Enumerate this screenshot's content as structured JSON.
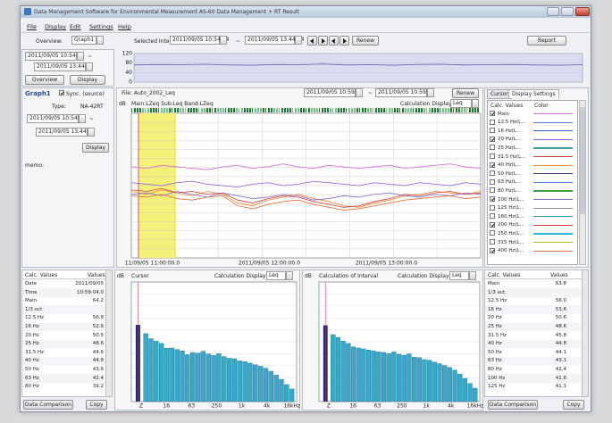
{
  "window": {
    "title": "Data Management Software for Environmental Measurement AS-60 Data Management + RT Result"
  },
  "menu": [
    "File",
    "Display",
    "Edit",
    "Settings",
    "Help"
  ],
  "toolbar": {
    "overview_label": "Overview:",
    "overview_value": "Graph1",
    "interval_label": "Selected Interval:",
    "start": "2011/09/05 10:54:04",
    "sep": "~",
    "end": "2011/09/05 13:44:04",
    "renew": "Renew",
    "report": "Report"
  },
  "overview": {
    "start": "2011/09/05 10:54:04",
    "sep": "~",
    "end": "2011/09/05 13:44:04",
    "buttons": [
      "Overview",
      "Display"
    ],
    "chart": {
      "type": "line",
      "ylim": [
        0,
        120
      ],
      "yticks": [
        0,
        40,
        80,
        120
      ],
      "color": "#6a5aa8",
      "values": [
        72,
        74,
        73,
        75,
        72,
        71,
        74,
        73,
        76,
        72,
        73,
        71,
        74,
        75,
        72,
        73,
        74,
        72,
        71,
        73
      ]
    }
  },
  "graph_panel": {
    "name": "Graph1",
    "sync_checked": true,
    "sync": "Sync. (source)",
    "type_label": "Type:",
    "type_value": "NA-42RT",
    "start": "2011/09/05 10:54:04",
    "sep": "~",
    "end": "2011/09/05 13:44:04",
    "display": "Display",
    "memo": "memo:"
  },
  "main_graph": {
    "file": "File: Auto_2002_Leq",
    "start": "2011/09/05 10:59:41",
    "sep": "~",
    "end": "2011/09/05 10:59:41",
    "renew": "Renew",
    "unit": "dB",
    "legend": "Main:LZeq Sub:Leq Band:LZeq",
    "calc_label": "Calculation Display",
    "calc_value": "Leq",
    "chart": {
      "type": "line",
      "ylim": [
        0,
        100
      ],
      "x_labels": [
        "11/09/05 11:00:00.0",
        "2011/09/05 12:00:00.0",
        "2011/09/05 13:00:00.0"
      ],
      "series": [
        {
          "color": "#d66fd6",
          "values": [
            63,
            62,
            64,
            63,
            62,
            61,
            63,
            64,
            62,
            63,
            65,
            63,
            62,
            64,
            63,
            62,
            63,
            64,
            62,
            63,
            64,
            65,
            63,
            62
          ]
        },
        {
          "color": "#8a5ad6",
          "values": [
            52,
            51,
            50,
            52,
            53,
            51,
            50,
            49,
            51,
            52,
            50,
            51,
            53,
            52,
            51,
            50,
            52,
            51,
            50,
            52,
            51,
            50,
            52,
            51
          ]
        },
        {
          "color": "#f08a30",
          "values": [
            46,
            44,
            47,
            45,
            43,
            46,
            44,
            38,
            36,
            40,
            42,
            44,
            41,
            39,
            36,
            35,
            38,
            40,
            43,
            44,
            46,
            45,
            44,
            46
          ]
        },
        {
          "color": "#7a6ad0",
          "values": [
            44,
            45,
            43,
            46,
            44,
            42,
            45,
            43,
            41,
            42,
            44,
            43,
            40,
            41,
            43,
            42,
            44,
            45,
            43,
            42,
            44,
            43,
            45,
            44
          ]
        },
        {
          "color": "#d04040",
          "values": [
            47,
            46,
            48,
            45,
            46,
            44,
            45,
            40,
            38,
            41,
            43,
            42,
            39,
            37,
            35,
            36,
            39,
            41,
            44,
            43,
            45,
            46,
            44,
            45
          ]
        },
        {
          "color": "#e07040",
          "values": [
            43,
            42,
            44,
            41,
            40,
            42,
            43,
            36,
            34,
            37,
            39,
            40,
            37,
            35,
            33,
            34,
            36,
            38,
            40,
            41,
            42,
            43,
            41,
            42
          ]
        }
      ]
    }
  },
  "display_settings": {
    "tabs": [
      "Cursor",
      "Display Settings"
    ],
    "headers": [
      "Calc. Values",
      "Color"
    ],
    "rows": [
      {
        "label": "Main",
        "checked": true,
        "color": "#d66fd6"
      },
      {
        "label": "12.5 Hz(L...",
        "checked": false,
        "color": "#4a7ad8"
      },
      {
        "label": "16 Hz(L...",
        "checked": false,
        "color": "#3a5ac0"
      },
      {
        "label": "20 Hz(L...",
        "checked": true,
        "color": "#8a5ad6"
      },
      {
        "label": "25 Hz(L...",
        "checked": false,
        "color": "#3aa0a0"
      },
      {
        "label": "31.5 Hz(L...",
        "checked": false,
        "color": "#d04040"
      },
      {
        "label": "40 Hz(L...",
        "checked": true,
        "color": "#f08a30"
      },
      {
        "label": "50 Hz(L...",
        "checked": false,
        "color": "#2a3a90"
      },
      {
        "label": "63 Hz(L...",
        "checked": false,
        "color": "#4a8ae0"
      },
      {
        "label": "80 Hz(L...",
        "checked": false,
        "color": "#40a040"
      },
      {
        "label": "100 Hz(L...",
        "checked": true,
        "color": "#7a6ad0"
      },
      {
        "label": "125 Hz(L...",
        "checked": false,
        "color": "#909090"
      },
      {
        "label": "160 Hz(L...",
        "checked": false,
        "color": "#30a0a0"
      },
      {
        "label": "200 Hz(L...",
        "checked": true,
        "color": "#d04040"
      },
      {
        "label": "250 Hz(L...",
        "checked": false,
        "color": "#30b8d8"
      },
      {
        "label": "315 Hz(L...",
        "checked": false,
        "color": "#a0c030"
      },
      {
        "label": "400 Hz(L...",
        "checked": true,
        "color": "#e07040"
      }
    ]
  },
  "cursor_table": {
    "headers": [
      "Calc. Values",
      "Values"
    ],
    "rows": [
      [
        "Date",
        "2011/09/05"
      ],
      [
        "Time",
        "10:59:04.0"
      ],
      [
        "Main",
        "64.2"
      ],
      [
        "1/3 oct."
      ],
      [
        "12.5 Hz",
        "56.8"
      ],
      [
        "16 Hz",
        "52.6"
      ],
      [
        "20 Hz",
        "50.5"
      ],
      [
        "25 Hz",
        "48.6"
      ],
      [
        "31.5 Hz",
        "44.6"
      ],
      [
        "40 Hz",
        "44.8"
      ],
      [
        "50 Hz",
        "43.6"
      ],
      [
        "63 Hz",
        "42.4"
      ],
      [
        "80 Hz",
        "39.2"
      ]
    ],
    "buttons": [
      "Data Comparison",
      "Copy"
    ]
  },
  "cursor_chart": {
    "type": "bar",
    "unit": "dB",
    "title": "Cursor",
    "calc_label": "Calculation Display",
    "calc_value": "Leq",
    "ylim": [
      0,
      100
    ],
    "main_color": "#1a2a80",
    "band_color": "#3aa8c8",
    "x_labels": [
      "Z",
      "16",
      "63",
      "250",
      "1k",
      "4k",
      "16kHz"
    ],
    "values": [
      64.2,
      56.8,
      52.6,
      50.5,
      48.6,
      44.6,
      44.8,
      43.6,
      42.4,
      39.2,
      41.0,
      40.5,
      42.0,
      39.8,
      38.5,
      40.1,
      37.6,
      36.2,
      35.8,
      34.0,
      33.5,
      32.2,
      30.8,
      29.5,
      27.9,
      25.4,
      22.1,
      18.6,
      14.2,
      10.5
    ]
  },
  "interval_chart": {
    "type": "bar",
    "unit": "dB",
    "title": "Calculation of Interval",
    "calc_label": "Calculation Display",
    "calc_value": "Leq",
    "ylim": [
      0,
      100
    ],
    "main_color": "#1a2a80",
    "band_color": "#3aa8c8",
    "x_labels": [
      "Z",
      "16",
      "63",
      "250",
      "1k",
      "4k",
      "16kHz"
    ],
    "values": [
      63.8,
      56.0,
      53.6,
      50.6,
      48.6,
      45.8,
      44.8,
      44.1,
      43.1,
      42.4,
      41.6,
      41.1,
      40.2,
      41.5,
      39.6,
      38.8,
      39.9,
      37.2,
      36.8,
      35.1,
      34.6,
      33.0,
      31.7,
      30.2,
      28.5,
      26.3,
      23.0,
      19.4,
      15.1,
      11.2
    ]
  },
  "interval_table": {
    "headers": [
      "Calc. Values",
      "Values"
    ],
    "rows": [
      [
        "Main",
        "63.8"
      ],
      [
        "1/3 oct."
      ],
      [
        "12.5 Hz",
        "56.0"
      ],
      [
        "16 Hz",
        "53.6"
      ],
      [
        "20 Hz",
        "50.6"
      ],
      [
        "25 Hz",
        "48.6"
      ],
      [
        "31.5 Hz",
        "45.8"
      ],
      [
        "40 Hz",
        "44.8"
      ],
      [
        "50 Hz",
        "44.1"
      ],
      [
        "63 Hz",
        "43.1"
      ],
      [
        "80 Hz",
        "42.4"
      ],
      [
        "100 Hz",
        "41.6"
      ],
      [
        "125 Hz",
        "41.1"
      ]
    ],
    "buttons": [
      "Data Comparison",
      "Copy"
    ]
  }
}
